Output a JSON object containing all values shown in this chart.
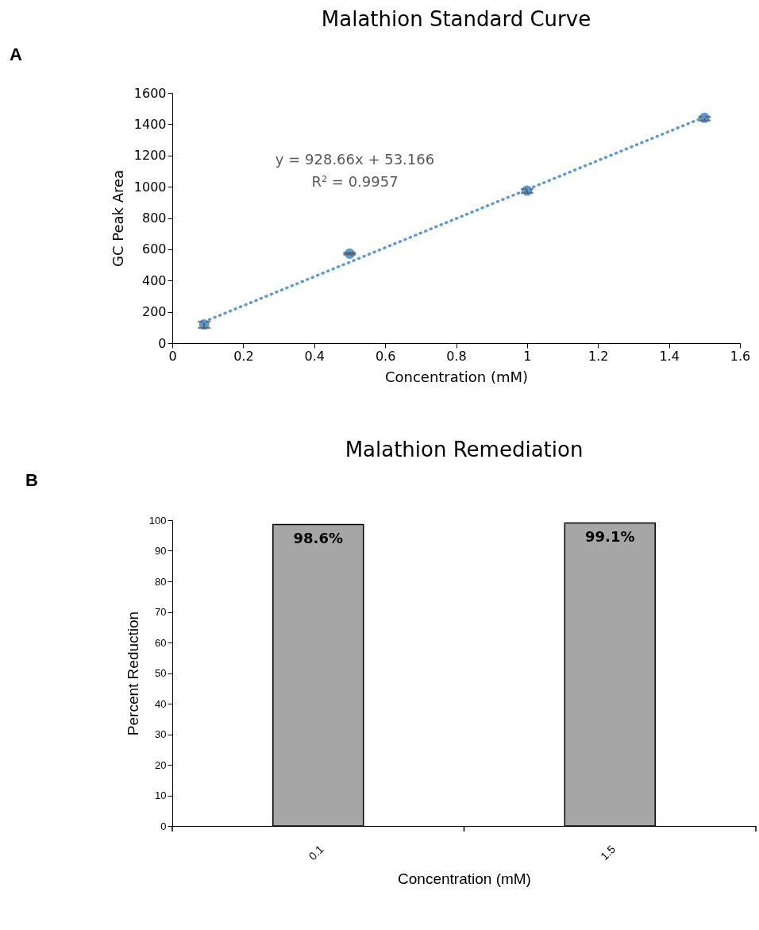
{
  "chart_data": [
    {
      "type": "scatter",
      "title": "Malathion Standard Curve",
      "xlabel": "Concentration  (mM)",
      "ylabel": "GC Peak Area",
      "annotations": [
        "A",
        "y = 928.66x + 53.166",
        "R² = 0.9957"
      ],
      "xlim": [
        0,
        1.6
      ],
      "xticks": [
        0,
        0.2,
        0.4,
        0.6,
        0.8,
        1,
        1.2,
        1.4,
        1.6
      ],
      "ylim": [
        0,
        1600
      ],
      "yticks": [
        0,
        200,
        400,
        600,
        800,
        1000,
        1200,
        1400,
        1600
      ],
      "series": [
        {
          "type": "scatter",
          "color": "#5b9bd5",
          "marker": "circle",
          "x": [
            0.09,
            0.5,
            1,
            1.5
          ],
          "values": [
            119,
            572,
            975,
            1441
          ],
          "errors": [
            [
              97,
              137
            ],
            5,
            [
              961,
              985
            ],
            [
              1423,
              1447
            ]
          ]
        },
        {
          "type": "line",
          "color": "#5b9bd5",
          "line_style": "dotted",
          "x": [
            0.09,
            1.5
          ],
          "values": [
            137,
            1446
          ]
        }
      ]
    },
    {
      "type": "bar",
      "title": "Malathion Remediation",
      "xlabel": "Concentration (mM)",
      "ylabel": "Percent Reduction",
      "annotations": [
        "B"
      ],
      "categories": [
        "0.1",
        "1.5"
      ],
      "values": [
        98.6,
        99.1
      ],
      "value_labels": [
        "98.6%",
        "99.1%"
      ],
      "color": "#a6a6a6",
      "ylim": [
        0,
        100
      ],
      "yticks": [
        0,
        10,
        20,
        30,
        40,
        50,
        60,
        70,
        80,
        90,
        100
      ]
    }
  ]
}
